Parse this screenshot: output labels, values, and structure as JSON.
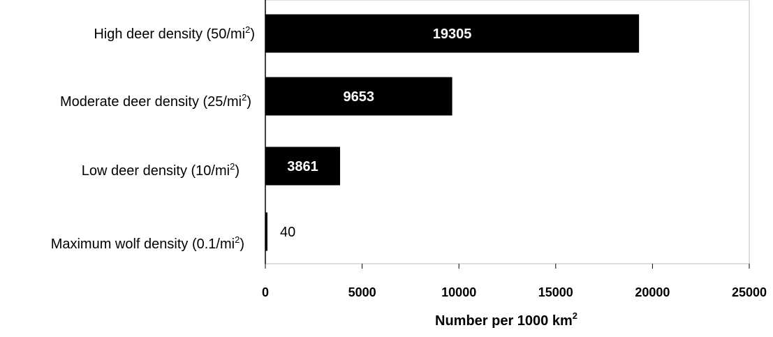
{
  "chart_data": {
    "type": "bar",
    "orientation": "horizontal",
    "categories": [
      {
        "base": "High deer density (50/mi",
        "sup": "2",
        "tail": ")"
      },
      {
        "base": "Moderate deer density (25/mi",
        "sup": "2",
        "tail": ")"
      },
      {
        "base": "Low deer density (10/mi",
        "sup": "2",
        "tail": ")"
      },
      {
        "base": "Maximum wolf density (0.1/mi",
        "sup": "2",
        "tail": ")"
      }
    ],
    "values": [
      19305,
      9653,
      3861,
      40
    ],
    "data_labels": [
      "19305",
      "9653",
      "3861",
      "40"
    ],
    "xlabel": {
      "base": "Number per 1000 km",
      "sup": "2"
    },
    "xlim": [
      0,
      25000
    ],
    "xticks": [
      0,
      5000,
      10000,
      15000,
      20000,
      25000
    ],
    "xtick_labels": [
      "0",
      "5000",
      "10000",
      "15000",
      "20000",
      "25000"
    ],
    "grid": false,
    "bar_color": "#000000",
    "frame_color": "#bdbdbd"
  }
}
